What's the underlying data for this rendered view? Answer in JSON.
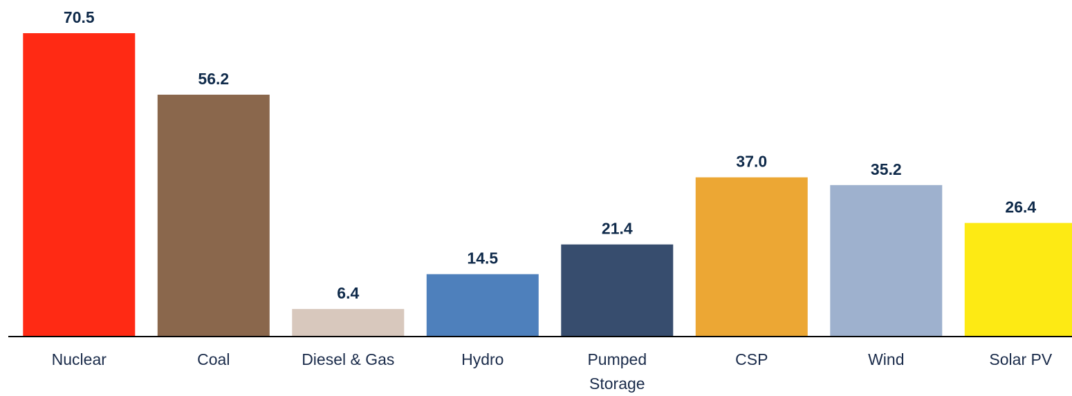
{
  "chart_data": {
    "type": "bar",
    "categories": [
      [
        "Nuclear"
      ],
      [
        "Coal"
      ],
      [
        "Diesel & Gas"
      ],
      [
        "Hydro"
      ],
      [
        "Pumped",
        "Storage"
      ],
      [
        "CSP"
      ],
      [
        "Wind"
      ],
      [
        "Solar PV"
      ]
    ],
    "values": [
      70.5,
      56.2,
      6.4,
      14.5,
      21.4,
      37.0,
      35.2,
      26.4
    ],
    "value_labels": [
      "70.5",
      "56.2",
      "6.4",
      "14.5",
      "21.4",
      "37.0",
      "35.2",
      "26.4"
    ],
    "colors": [
      "#ff2a14",
      "#8a674c",
      "#d8c8bd",
      "#4e80bc",
      "#374d6e",
      "#eca734",
      "#9eb1ce",
      "#fdea14"
    ],
    "title": "",
    "xlabel": "",
    "ylabel": "",
    "ylim": [
      0,
      70.5
    ],
    "grid": false,
    "legend": "none",
    "axis_line_color": "#000000",
    "label_color": "#0f2a4a"
  }
}
